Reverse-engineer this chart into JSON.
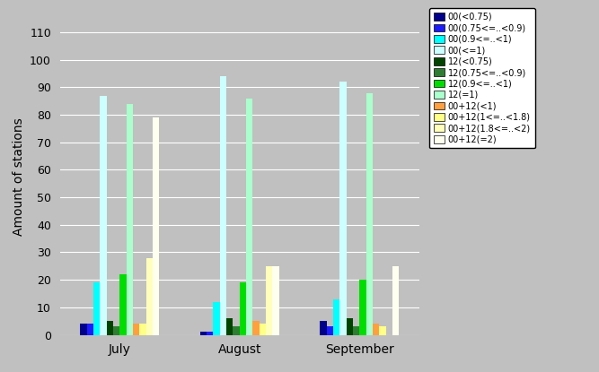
{
  "months": [
    "July",
    "August",
    "September"
  ],
  "series": [
    {
      "label": "00(<0.75)",
      "color": "#00008B",
      "values": [
        4,
        1,
        5
      ]
    },
    {
      "label": "00(0.75<=..<0.9)",
      "color": "#1C1CFF",
      "values": [
        4,
        1,
        3
      ]
    },
    {
      "label": "00(0.9<=..<1)",
      "color": "#00FFFF",
      "values": [
        19,
        12,
        13
      ]
    },
    {
      "label": "00(<=1)",
      "color": "#CCFFFF",
      "values": [
        87,
        94,
        92
      ]
    },
    {
      "label": "12(<0.75)",
      "color": "#004400",
      "values": [
        5,
        6,
        6
      ]
    },
    {
      "label": "12(0.75<=..<0.9)",
      "color": "#2E7D32",
      "values": [
        3,
        3,
        3
      ]
    },
    {
      "label": "12(0.9<=..<1)",
      "color": "#00DD00",
      "values": [
        22,
        19,
        20
      ]
    },
    {
      "label": "12(=1)",
      "color": "#AAFFCC",
      "values": [
        84,
        86,
        88
      ]
    },
    {
      "label": "00+12(<1)",
      "color": "#FFA040",
      "values": [
        4,
        5,
        4
      ]
    },
    {
      "label": "00+12(1<=..<1.8)",
      "color": "#FFFF88",
      "values": [
        4,
        4,
        3
      ]
    },
    {
      "label": "00+12(1.8<=..<2)",
      "color": "#FFFFBB",
      "values": [
        28,
        25,
        0
      ]
    },
    {
      "label": "00+12(=2)",
      "color": "#FFFFF0",
      "values": [
        79,
        25,
        25
      ]
    }
  ],
  "ylabel": "Amount of stations",
  "ylim": [
    0,
    115
  ],
  "yticks": [
    0,
    10,
    20,
    30,
    40,
    50,
    60,
    70,
    80,
    90,
    100,
    110
  ],
  "bar_width": 0.055,
  "bg_color": "#C0C0C0",
  "plot_bg_color": "#C0C0C0",
  "grid_color": "#FFFFFF",
  "figsize": [
    6.67,
    4.15
  ],
  "dpi": 100
}
